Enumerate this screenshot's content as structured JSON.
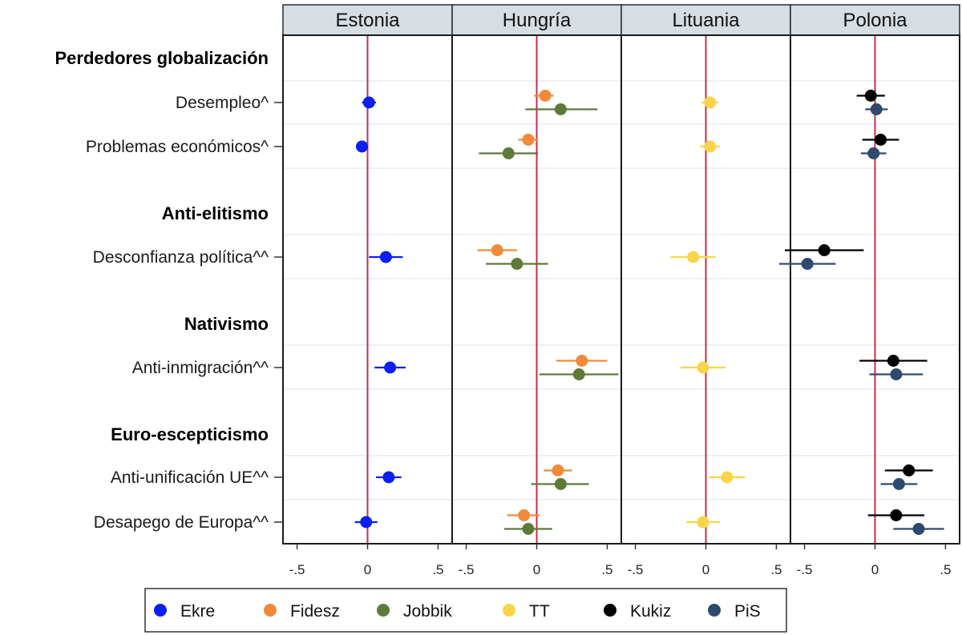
{
  "chart_data": {
    "type": "scatter",
    "subtype": "coefficient-plot-with-intervals",
    "panels": [
      "Estonia",
      "Hungría",
      "Lituania",
      "Polonia"
    ],
    "xlim": [
      -0.6,
      0.6
    ],
    "x_ticks": [
      -0.5,
      0,
      0.5
    ],
    "x_tick_labels": [
      "-.5",
      "0",
      ".5"
    ],
    "reference_line": 0,
    "rows": [
      {
        "id": "s1",
        "kind": "section",
        "label": "Perdedores globalización"
      },
      {
        "id": "r1",
        "kind": "item",
        "label": "Desempleo^"
      },
      {
        "id": "r2",
        "kind": "item",
        "label": "Problemas económicos^"
      },
      {
        "id": "s2",
        "kind": "section",
        "label": "Anti-elitismo"
      },
      {
        "id": "r3",
        "kind": "item",
        "label": "Desconfianza política^^"
      },
      {
        "id": "s3",
        "kind": "section",
        "label": "Nativismo"
      },
      {
        "id": "r4",
        "kind": "item",
        "label": "Anti-inmigración^^"
      },
      {
        "id": "s4",
        "kind": "section",
        "label": "Euro-escepticismo"
      },
      {
        "id": "r5",
        "kind": "item",
        "label": "Anti-unificación UE^^"
      },
      {
        "id": "r6",
        "kind": "item",
        "label": "Desapego de Europa^^"
      }
    ],
    "series": [
      {
        "name": "Ekre",
        "color": "#0a1ff0",
        "panel": "Estonia",
        "offset": 0,
        "points": [
          {
            "row": "r1",
            "x": 0.01,
            "lo": -0.04,
            "hi": 0.06
          },
          {
            "row": "r2",
            "x": -0.04,
            "lo": -0.07,
            "hi": -0.01
          },
          {
            "row": "r3",
            "x": 0.13,
            "lo": 0.01,
            "hi": 0.25
          },
          {
            "row": "r4",
            "x": 0.16,
            "lo": 0.05,
            "hi": 0.27
          },
          {
            "row": "r5",
            "x": 0.15,
            "lo": 0.06,
            "hi": 0.24
          },
          {
            "row": "r6",
            "x": -0.01,
            "lo": -0.09,
            "hi": 0.07
          }
        ]
      },
      {
        "name": "Fidesz",
        "color": "#f08a3a",
        "panel": "Hungría",
        "offset": -1,
        "points": [
          {
            "row": "r1",
            "x": 0.06,
            "lo": -0.02,
            "hi": 0.12
          },
          {
            "row": "r2",
            "x": -0.06,
            "lo": -0.13,
            "hi": 0.01
          },
          {
            "row": "r3",
            "x": -0.28,
            "lo": -0.42,
            "hi": -0.14
          },
          {
            "row": "r4",
            "x": 0.32,
            "lo": 0.14,
            "hi": 0.5
          },
          {
            "row": "r5",
            "x": 0.15,
            "lo": 0.05,
            "hi": 0.25
          },
          {
            "row": "r6",
            "x": -0.09,
            "lo": -0.21,
            "hi": 0.02
          }
        ]
      },
      {
        "name": "Jobbik",
        "color": "#5e7a3a",
        "panel": "Hungría",
        "offset": 1,
        "points": [
          {
            "row": "r1",
            "x": 0.17,
            "lo": -0.08,
            "hi": 0.43
          },
          {
            "row": "r2",
            "x": -0.2,
            "lo": -0.41,
            "hi": 0.01
          },
          {
            "row": "r3",
            "x": -0.14,
            "lo": -0.36,
            "hi": 0.08
          },
          {
            "row": "r4",
            "x": 0.3,
            "lo": 0.02,
            "hi": 0.58
          },
          {
            "row": "r5",
            "x": 0.17,
            "lo": -0.04,
            "hi": 0.37
          },
          {
            "row": "r6",
            "x": -0.06,
            "lo": -0.23,
            "hi": 0.11
          }
        ]
      },
      {
        "name": "TT",
        "color": "#f8d548",
        "panel": "Lituania",
        "offset": 0,
        "points": [
          {
            "row": "r1",
            "x": 0.03,
            "lo": -0.03,
            "hi": 0.09
          },
          {
            "row": "r2",
            "x": 0.03,
            "lo": -0.04,
            "hi": 0.1
          },
          {
            "row": "r3",
            "x": -0.09,
            "lo": -0.25,
            "hi": 0.07
          },
          {
            "row": "r4",
            "x": -0.02,
            "lo": -0.18,
            "hi": 0.14
          },
          {
            "row": "r5",
            "x": 0.15,
            "lo": 0.02,
            "hi": 0.28
          },
          {
            "row": "r6",
            "x": -0.02,
            "lo": -0.14,
            "hi": 0.1
          }
        ]
      },
      {
        "name": "Kukiz",
        "color": "#000000",
        "panel": "Polonia",
        "offset": -1,
        "points": [
          {
            "row": "r1",
            "x": -0.03,
            "lo": -0.13,
            "hi": 0.07
          },
          {
            "row": "r2",
            "x": 0.04,
            "lo": -0.09,
            "hi": 0.17
          },
          {
            "row": "r3",
            "x": -0.36,
            "lo": -0.64,
            "hi": -0.08
          },
          {
            "row": "r4",
            "x": 0.13,
            "lo": -0.11,
            "hi": 0.37
          },
          {
            "row": "r5",
            "x": 0.24,
            "lo": 0.07,
            "hi": 0.41
          },
          {
            "row": "r6",
            "x": 0.15,
            "lo": -0.05,
            "hi": 0.35
          }
        ]
      },
      {
        "name": "PiS",
        "color": "#2e4a6e",
        "panel": "Polonia",
        "offset": 1,
        "points": [
          {
            "row": "r1",
            "x": 0.01,
            "lo": -0.07,
            "hi": 0.09
          },
          {
            "row": "r2",
            "x": -0.01,
            "lo": -0.1,
            "hi": 0.08
          },
          {
            "row": "r3",
            "x": -0.48,
            "lo": -0.68,
            "hi": -0.28
          },
          {
            "row": "r4",
            "x": 0.15,
            "lo": -0.04,
            "hi": 0.34
          },
          {
            "row": "r5",
            "x": 0.17,
            "lo": 0.04,
            "hi": 0.3
          },
          {
            "row": "r6",
            "x": 0.31,
            "lo": 0.13,
            "hi": 0.49
          }
        ]
      }
    ],
    "legend": {
      "position": "bottom",
      "items": [
        "Ekre",
        "Fidesz",
        "Jobbik",
        "TT",
        "Kukiz",
        "PiS"
      ]
    },
    "grid": {
      "horizontal": true,
      "vertical": false
    },
    "colors": {
      "reference_line": "#c0304a",
      "header_bg": "#d6dde3",
      "grid": "#e7ebee"
    }
  }
}
